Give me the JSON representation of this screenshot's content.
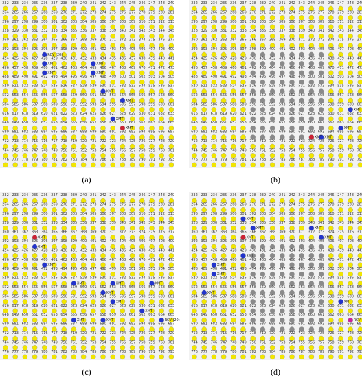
{
  "grid": {
    "rows": [
      [
        232,
        233,
        234,
        235,
        236,
        237,
        238,
        239,
        240,
        241,
        242,
        243,
        244,
        245,
        246,
        247,
        248,
        249
      ],
      [
        264,
        265,
        266,
        267,
        268,
        269,
        270,
        271,
        272,
        273,
        274,
        275,
        276,
        277,
        278,
        279,
        280,
        281
      ],
      [
        296,
        297,
        298,
        299,
        300,
        301,
        302,
        303,
        304,
        305,
        306,
        307,
        308,
        309,
        310,
        311,
        312,
        313
      ],
      [
        328,
        329,
        330,
        331,
        332,
        333,
        334,
        335,
        336,
        337,
        338,
        339,
        340,
        341,
        342,
        343,
        344,
        345
      ],
      [
        360,
        361,
        362,
        363,
        364,
        365,
        366,
        367,
        368,
        369,
        370,
        371,
        372,
        373,
        374,
        375,
        376,
        377
      ],
      [
        392,
        393,
        394,
        395,
        396,
        397,
        398,
        399,
        400,
        401,
        402,
        403,
        404,
        405,
        406,
        407,
        408,
        409
      ],
      [
        424,
        425,
        426,
        427,
        428,
        429,
        430,
        431,
        432,
        433,
        434,
        435,
        436,
        437,
        438,
        439,
        440,
        441
      ],
      [
        456,
        457,
        458,
        459,
        460,
        461,
        462,
        463,
        464,
        465,
        466,
        467,
        468,
        469,
        470,
        471,
        472,
        473
      ],
      [
        488,
        489,
        490,
        491,
        492,
        493,
        494,
        495,
        496,
        497,
        498,
        499,
        500,
        501,
        502,
        503,
        504,
        505
      ],
      [
        520,
        521,
        522,
        523,
        524,
        525,
        526,
        527,
        528,
        529,
        530,
        531,
        532,
        533,
        534,
        535,
        536,
        537
      ],
      [
        552,
        553,
        554,
        555,
        556,
        557,
        558,
        559,
        560,
        561,
        562,
        563,
        564,
        565,
        566,
        567,
        568,
        569
      ],
      [
        584,
        585,
        586,
        587,
        588,
        589,
        590,
        591,
        592,
        593,
        594,
        595,
        596,
        597,
        598,
        599,
        600,
        601
      ],
      [
        616,
        617,
        618,
        619,
        620,
        621,
        622,
        623,
        624,
        625,
        626,
        627,
        628,
        629,
        630,
        631,
        632,
        633
      ],
      [
        648,
        649,
        650,
        651,
        652,
        653,
        654,
        655,
        656,
        657,
        658,
        659,
        660,
        661,
        662,
        663,
        664,
        665
      ],
      [
        680,
        681,
        682,
        683,
        684,
        685,
        686,
        687,
        688,
        689,
        690,
        691,
        692,
        693,
        694,
        695,
        696,
        697
      ],
      [
        712,
        713,
        714,
        715,
        716,
        717,
        718,
        719,
        720,
        721,
        722,
        723,
        724,
        725,
        726,
        727,
        728,
        729
      ],
      [
        744,
        745,
        746,
        747,
        748,
        749,
        750,
        751,
        752,
        753,
        754,
        755,
        756,
        757,
        758,
        759,
        760,
        761
      ],
      [
        776,
        777,
        778,
        779,
        780,
        781,
        782,
        783,
        784,
        785,
        786,
        787,
        788,
        789,
        790,
        791,
        792,
        793
      ]
    ]
  },
  "shaded_nodes": [
    398,
    399,
    400,
    401,
    402,
    403,
    404,
    405,
    430,
    431,
    432,
    433,
    434,
    435,
    436,
    437,
    462,
    463,
    464,
    465,
    466,
    467,
    468,
    469,
    494,
    495,
    496,
    497,
    498,
    499,
    500,
    501,
    526,
    527,
    528,
    529,
    530,
    531,
    532,
    533,
    558,
    559,
    560,
    561,
    562,
    563,
    564,
    565,
    590,
    591,
    592,
    593,
    594,
    595,
    596,
    597,
    622,
    623,
    624,
    625,
    626,
    627,
    628,
    629,
    654,
    655,
    656,
    657,
    658,
    659,
    660,
    661,
    686,
    687,
    688,
    689,
    690,
    691,
    692,
    693
  ],
  "panels": [
    {
      "caption": "(a)",
      "shaded": false,
      "dots": [
        {
          "node": 396,
          "color": "#2233cc",
          "label": "RCV (20)"
        },
        {
          "node": 428,
          "color": "#2233cc",
          "label": "XMT"
        },
        {
          "node": 433,
          "color": "#2233cc",
          "label": "XMT"
        },
        {
          "node": 460,
          "color": "#2233cc",
          "label": "XMT"
        },
        {
          "node": 465,
          "color": "#2233cc",
          "label": "XMT"
        },
        {
          "node": 530,
          "color": "#2233cc",
          "label": "XMT"
        },
        {
          "node": 564,
          "color": "#2233cc",
          "label": "XMT"
        },
        {
          "node": 627,
          "color": "#2233cc",
          "label": "XMT"
        },
        {
          "node": 660,
          "color": "#cc2233",
          "label": "XMT"
        }
      ]
    },
    {
      "caption": "(b)",
      "shaded": true,
      "dots": [
        {
          "node": 600,
          "color": "#2233cc",
          "label": "XMT"
        },
        {
          "node": 663,
          "color": "#2233cc",
          "label": "XMT"
        },
        {
          "node": 693,
          "color": "#2233cc",
          "label": "XMT"
        },
        {
          "node": 692,
          "color": "#cc2233",
          "label": "XMT"
        }
      ]
    },
    {
      "caption": "(c)",
      "shaded": false,
      "dots": [
        {
          "node": 363,
          "color": "#cc2233",
          "label": "XMT"
        },
        {
          "node": 395,
          "color": "#2233cc",
          "label": "XMT"
        },
        {
          "node": 460,
          "color": "#2233cc",
          "label": "XMT"
        },
        {
          "node": 527,
          "color": "#2233cc",
          "label": "XMT"
        },
        {
          "node": 531,
          "color": "#2233cc",
          "label": "XMT"
        },
        {
          "node": 535,
          "color": "#2233cc",
          "label": "XMT"
        },
        {
          "node": 562,
          "color": "#2233cc",
          "label": "XMT"
        },
        {
          "node": 595,
          "color": "#2233cc",
          "label": "XMT"
        },
        {
          "node": 630,
          "color": "#2233cc",
          "label": "XMT"
        },
        {
          "node": 655,
          "color": "#2233cc",
          "label": "XMT"
        },
        {
          "node": 658,
          "color": "#2233cc",
          "label": "XMT"
        },
        {
          "node": 664,
          "color": "#2233cc",
          "label": "RCV (20)"
        }
      ]
    },
    {
      "caption": "(d)",
      "shaded": true,
      "dots": [
        {
          "node": 301,
          "color": "#2233cc",
          "label": "XMT"
        },
        {
          "node": 334,
          "color": "#2233cc",
          "label": "XMT"
        },
        {
          "node": 340,
          "color": "#2233cc",
          "label": "XMT"
        },
        {
          "node": 365,
          "color": "#cc2233",
          "label": "XMT"
        },
        {
          "node": 373,
          "color": "#2233cc",
          "label": "XMT"
        },
        {
          "node": 429,
          "color": "#2233cc",
          "label": "XMT"
        },
        {
          "node": 458,
          "color": "#2233cc",
          "label": "XMT"
        },
        {
          "node": 490,
          "color": "#2233cc",
          "label": "XMT"
        },
        {
          "node": 553,
          "color": "#2233cc",
          "label": "XMT"
        },
        {
          "node": 599,
          "color": "#2233cc",
          "label": "XMT"
        },
        {
          "node": 664,
          "color": "#cc2299",
          "label": "RCV (20)"
        }
      ]
    }
  ]
}
